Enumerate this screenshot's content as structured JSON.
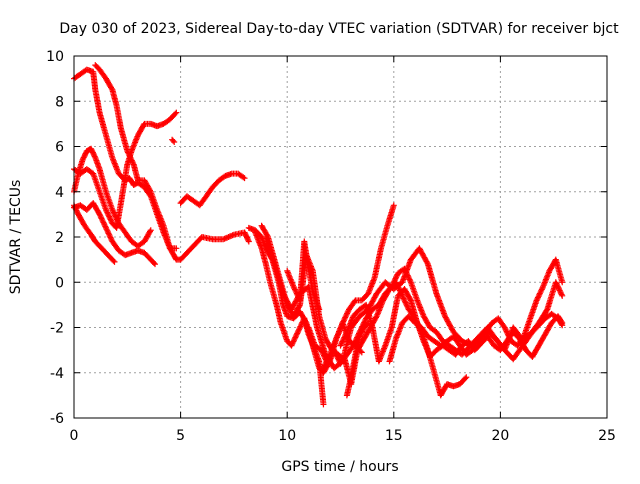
{
  "chart_data": {
    "type": "scatter",
    "title": "Day 030 of 2023, Sidereal Day-to-day VTEC variation (SDTVAR) for receiver bjct",
    "xlabel": "GPS time / hours",
    "ylabel": "SDTVAR / TECUs",
    "xlim": [
      0,
      25
    ],
    "ylim": [
      -6,
      10
    ],
    "xticks": [
      0,
      5,
      10,
      15,
      20,
      25
    ],
    "yticks": [
      -6,
      -4,
      -2,
      0,
      2,
      4,
      6,
      8,
      10
    ],
    "grid": true,
    "marker": "+",
    "color": "#ff0000",
    "series": [
      {
        "x": [
          0.0,
          0.3,
          0.6,
          0.9,
          1.0,
          1.2,
          1.5,
          1.8,
          2.1,
          2.4,
          2.6,
          2.8,
          3.0,
          3.3,
          3.6,
          3.9,
          4.2,
          4.5,
          4.8
        ],
        "y": [
          9.0,
          9.2,
          9.4,
          9.3,
          8.5,
          7.5,
          6.5,
          5.5,
          4.8,
          4.5,
          4.6,
          4.3,
          4.4,
          4.2,
          3.8,
          3.0,
          2.2,
          1.5,
          1.5
        ]
      },
      {
        "x": [
          1.0,
          1.2,
          1.5,
          1.8,
          2.0,
          2.2,
          2.5,
          2.8,
          3.0,
          3.3,
          3.6,
          3.9,
          4.2,
          4.5,
          4.8,
          5.0,
          5.5,
          6.0,
          6.5,
          7.0,
          7.5,
          8.0,
          8.2
        ],
        "y": [
          9.6,
          9.4,
          9.0,
          8.5,
          7.8,
          6.8,
          5.8,
          5.2,
          4.5,
          4.5,
          4.0,
          3.2,
          2.5,
          1.5,
          1.0,
          1.0,
          1.5,
          2.0,
          1.9,
          1.9,
          2.1,
          2.2,
          1.8
        ]
      },
      {
        "x": [
          0.0,
          0.3,
          0.6,
          0.9,
          1.2,
          1.5,
          1.8,
          2.1,
          2.4,
          2.7,
          3.0,
          3.3,
          3.6,
          3.8
        ],
        "y": [
          3.3,
          3.4,
          3.2,
          3.5,
          3.0,
          2.4,
          1.8,
          1.4,
          1.2,
          1.3,
          1.4,
          1.3,
          1.0,
          0.8
        ]
      },
      {
        "x": [
          0.0,
          0.3,
          0.6,
          0.9,
          1.2,
          1.5,
          1.8,
          2.0,
          2.2,
          2.5,
          2.7,
          3.0,
          3.3,
          3.6,
          3.9,
          4.2,
          4.5,
          4.8
        ],
        "y": [
          5.0,
          4.8,
          5.0,
          4.8,
          4.0,
          3.2,
          2.6,
          2.4,
          3.5,
          5.2,
          5.8,
          6.5,
          7.0,
          7.0,
          6.9,
          7.0,
          7.2,
          7.5
        ]
      },
      {
        "x": [
          0.0,
          0.2,
          0.4,
          0.6,
          0.8,
          1.0,
          1.2,
          1.5,
          1.8,
          2.1,
          2.4,
          2.7,
          3.0,
          3.3,
          3.6
        ],
        "y": [
          4.0,
          4.8,
          5.4,
          5.8,
          5.9,
          5.5,
          5.0,
          4.0,
          3.2,
          2.6,
          2.2,
          1.8,
          1.6,
          1.8,
          2.3
        ]
      },
      {
        "x": [
          0.0,
          0.2,
          0.5,
          0.8,
          1.0,
          1.3,
          1.6,
          1.9
        ],
        "y": [
          3.4,
          3.0,
          2.5,
          2.1,
          1.8,
          1.5,
          1.2,
          0.9
        ]
      },
      {
        "x": [
          5.0,
          5.3,
          5.6,
          5.9,
          6.2,
          6.5,
          6.8,
          7.1,
          7.4,
          7.7,
          8.0
        ],
        "y": [
          3.5,
          3.8,
          3.6,
          3.4,
          3.8,
          4.2,
          4.5,
          4.7,
          4.8,
          4.8,
          4.6
        ]
      },
      {
        "x": [
          8.2,
          8.5,
          8.8,
          9.0,
          9.3,
          9.6,
          9.8,
          10.0,
          10.3,
          10.6,
          10.9,
          11.2,
          11.5,
          11.7,
          12.0,
          12.3,
          12.6,
          12.9,
          13.2,
          13.5,
          13.8,
          14.1,
          14.4,
          14.7,
          15.0
        ],
        "y": [
          2.4,
          2.3,
          2.0,
          1.5,
          1.0,
          0.0,
          -1.0,
          -1.5,
          -1.6,
          -1.3,
          -1.8,
          -2.8,
          -3.8,
          -4.0,
          -3.5,
          -2.5,
          -1.8,
          -1.2,
          -0.8,
          -0.8,
          -0.5,
          0.2,
          1.5,
          2.5,
          3.4
        ]
      },
      {
        "x": [
          8.5,
          8.8,
          9.0,
          9.2,
          9.5,
          9.7,
          10.0,
          10.2,
          10.5,
          10.8,
          11.0,
          11.3,
          11.5,
          11.7
        ],
        "y": [
          2.2,
          1.5,
          0.8,
          0.0,
          -1.0,
          -1.8,
          -2.6,
          -2.8,
          -2.2,
          -1.6,
          -2.3,
          -3.0,
          -3.5,
          -5.4
        ]
      },
      {
        "x": [
          8.8,
          9.1,
          9.4,
          9.7,
          10.0,
          10.3,
          10.6,
          10.9,
          11.2,
          11.5,
          11.8,
          12.1,
          12.4,
          12.7,
          13.0,
          13.3,
          13.6,
          13.9,
          14.2,
          14.5,
          14.8,
          15.1,
          15.4,
          15.7,
          16.0,
          16.3,
          16.6,
          16.9,
          17.2,
          17.5,
          17.8,
          18.1,
          18.4
        ],
        "y": [
          2.5,
          2.0,
          1.0,
          0.0,
          -1.0,
          -1.5,
          -1.0,
          1.2,
          0.5,
          -1.5,
          -2.5,
          -3.0,
          -3.2,
          -3.4,
          -4.5,
          -3.0,
          -2.5,
          -2.0,
          -1.5,
          -0.8,
          -0.3,
          0.0,
          -0.6,
          -1.2,
          -1.6,
          -2.2,
          -3.0,
          -4.0,
          -5.0,
          -4.5,
          -4.6,
          -4.5,
          -4.2
        ]
      },
      {
        "x": [
          9.0,
          9.4,
          9.8,
          10.2,
          10.6,
          11.0,
          11.4,
          11.8,
          12.2,
          12.6,
          13.0,
          13.4,
          13.8,
          14.2,
          14.6,
          15.0,
          15.4,
          15.8,
          16.2,
          16.6,
          17.0,
          17.4,
          17.8,
          18.2,
          18.6,
          19.0,
          19.4,
          19.8,
          20.2,
          20.6,
          21.0,
          21.4,
          21.8,
          22.2,
          22.6,
          22.9
        ],
        "y": [
          2.0,
          0.8,
          -0.5,
          -1.2,
          -0.5,
          -0.2,
          -2.0,
          -3.2,
          -3.8,
          -3.5,
          -2.0,
          -1.5,
          -1.2,
          -0.5,
          0.0,
          -0.3,
          0.0,
          1.0,
          1.5,
          0.8,
          -0.5,
          -1.5,
          -2.2,
          -2.6,
          -2.8,
          -2.5,
          -2.2,
          -2.5,
          -3.0,
          -2.0,
          -2.5,
          -2.3,
          -1.8,
          -1.2,
          0.0,
          -0.6
        ]
      },
      {
        "x": [
          12.5,
          12.8,
          13.1,
          13.4,
          13.7,
          14.0,
          14.3,
          14.6,
          14.9,
          15.2,
          15.5,
          15.8,
          16.1,
          16.4,
          16.7,
          17.0,
          17.3,
          17.6,
          17.9,
          18.2,
          18.5,
          18.8,
          19.1,
          19.4,
          19.7,
          20.0,
          20.3,
          20.6,
          20.9,
          21.2,
          21.5,
          21.8,
          22.1,
          22.4,
          22.7,
          22.9
        ],
        "y": [
          -2.8,
          -2.2,
          -1.5,
          -1.2,
          -1.0,
          -2.0,
          -3.5,
          -2.8,
          -2.0,
          -0.6,
          -0.3,
          -0.8,
          -1.8,
          -2.6,
          -3.3,
          -3.0,
          -2.8,
          -3.0,
          -3.2,
          -2.8,
          -2.6,
          -3.0,
          -2.7,
          -2.4,
          -2.8,
          -3.0,
          -2.6,
          -2.2,
          -2.5,
          -3.0,
          -3.3,
          -2.8,
          -2.3,
          -1.8,
          -1.5,
          -1.8
        ]
      },
      {
        "x": [
          11.0,
          11.3,
          11.6,
          11.9,
          12.2,
          12.5,
          12.8,
          13.1,
          13.4,
          13.7,
          14.0,
          14.3,
          14.6,
          14.9,
          15.2,
          15.5,
          15.8,
          16.1,
          16.4,
          16.7,
          17.0,
          17.3,
          17.6,
          17.9,
          18.2,
          18.5,
          18.8,
          19.1,
          19.4,
          19.7,
          20.0,
          20.3,
          20.6,
          20.9,
          21.2,
          21.5,
          21.8,
          22.1,
          22.4,
          22.7,
          22.9
        ],
        "y": [
          -2.0,
          -2.8,
          -3.0,
          -3.6,
          -3.0,
          -3.6,
          -3.2,
          -2.8,
          -2.2,
          -1.6,
          -1.2,
          -1.0,
          -0.5,
          -0.2,
          0.4,
          0.6,
          0.0,
          -0.8,
          -1.5,
          -2.0,
          -2.2,
          -2.6,
          -2.8,
          -3.0,
          -3.2,
          -2.9,
          -2.6,
          -2.3,
          -2.0,
          -2.4,
          -2.8,
          -3.1,
          -3.4,
          -3.0,
          -2.6,
          -2.2,
          -1.9,
          -1.6,
          -1.4,
          -1.6,
          -1.9
        ]
      },
      {
        "x": [
          14.8,
          15.1,
          15.4,
          15.7,
          16.0,
          16.3,
          16.6,
          16.9,
          17.2,
          17.5,
          17.8,
          18.1,
          18.4,
          18.7,
          19.0,
          19.3,
          19.6,
          19.9,
          20.2,
          20.5,
          20.8,
          21.1,
          21.4,
          21.7,
          22.0,
          22.3,
          22.6,
          22.9
        ],
        "y": [
          -3.5,
          -2.5,
          -1.8,
          -1.5,
          -1.8,
          -2.0,
          -2.4,
          -2.6,
          -2.8,
          -2.6,
          -2.4,
          -2.8,
          -3.2,
          -3.0,
          -2.6,
          -2.2,
          -1.8,
          -1.6,
          -2.0,
          -2.6,
          -2.8,
          -2.4,
          -1.6,
          -0.8,
          -0.2,
          0.5,
          1.0,
          0.0
        ]
      },
      {
        "x": [
          12.8,
          13.0,
          13.2,
          13.4,
          13.6,
          13.8
        ],
        "y": [
          -5.0,
          -4.2,
          -3.2,
          -2.4,
          -2.0,
          -1.8
        ]
      },
      {
        "x": [
          11.7,
          12.0,
          12.3,
          12.6,
          12.9,
          13.2,
          13.5
        ],
        "y": [
          -3.8,
          -3.2,
          -2.5,
          -1.8,
          -2.6,
          -2.8,
          -3.1
        ]
      },
      {
        "x": [
          10.0,
          10.3,
          10.6,
          10.8,
          11.0,
          11.2,
          11.5
        ],
        "y": [
          0.5,
          -0.2,
          -0.8,
          1.8,
          0.6,
          -0.4,
          -1.2
        ]
      },
      {
        "x": [
          4.6,
          4.7
        ],
        "y": [
          6.3,
          6.2
        ]
      }
    ]
  }
}
